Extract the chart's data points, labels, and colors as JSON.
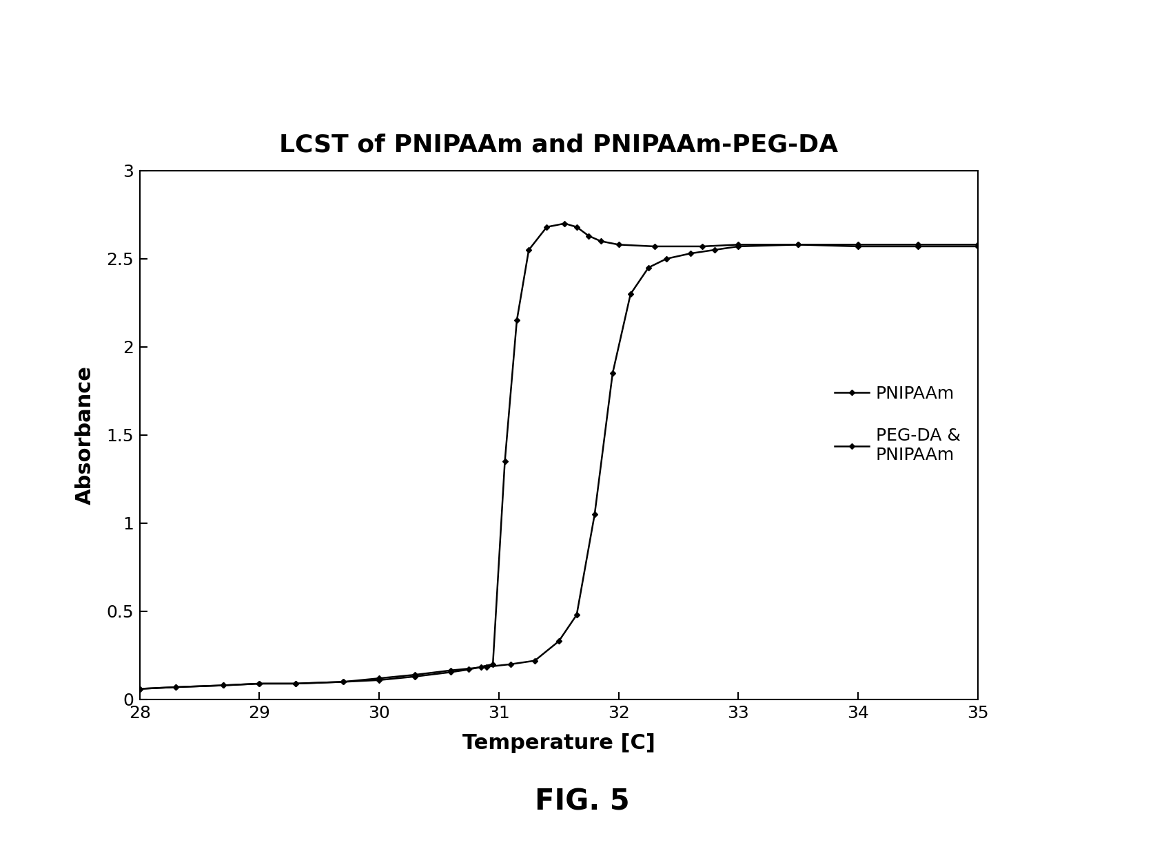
{
  "title": "LCST of PNIPAAm and PNIPAAm-PEG-DA",
  "xlabel": "Temperature [C]",
  "ylabel": "Absorbance",
  "xlim": [
    28,
    35
  ],
  "ylim": [
    0,
    3
  ],
  "xticks": [
    28,
    29,
    30,
    31,
    32,
    33,
    34,
    35
  ],
  "yticks": [
    0,
    0.5,
    1,
    1.5,
    2,
    2.5,
    3
  ],
  "fig_caption": "FIG. 5",
  "background_color": "#ffffff",
  "series1_label": "PNIPAAm",
  "series2_label": "PEG-DA &\nPNIPAAm",
  "series1_x": [
    28.0,
    28.3,
    28.7,
    29.0,
    29.3,
    29.7,
    30.0,
    30.3,
    30.6,
    30.75,
    30.85,
    30.95,
    31.05,
    31.15,
    31.25,
    31.4,
    31.55,
    31.65,
    31.75,
    31.85,
    32.0,
    32.3,
    32.7,
    33.0,
    33.5,
    34.0,
    34.5,
    35.0
  ],
  "series1_y": [
    0.06,
    0.07,
    0.08,
    0.09,
    0.09,
    0.1,
    0.11,
    0.13,
    0.155,
    0.17,
    0.185,
    0.2,
    1.35,
    2.15,
    2.55,
    2.68,
    2.7,
    2.68,
    2.63,
    2.6,
    2.58,
    2.57,
    2.57,
    2.58,
    2.58,
    2.57,
    2.57,
    2.57
  ],
  "series2_x": [
    28.0,
    28.3,
    28.7,
    29.0,
    29.3,
    29.7,
    30.0,
    30.3,
    30.6,
    30.9,
    31.1,
    31.3,
    31.5,
    31.65,
    31.8,
    31.95,
    32.1,
    32.25,
    32.4,
    32.6,
    32.8,
    33.0,
    33.5,
    34.0,
    34.5,
    35.0
  ],
  "series2_y": [
    0.06,
    0.07,
    0.08,
    0.09,
    0.09,
    0.1,
    0.12,
    0.14,
    0.165,
    0.185,
    0.2,
    0.22,
    0.33,
    0.48,
    1.05,
    1.85,
    2.3,
    2.45,
    2.5,
    2.53,
    2.55,
    2.57,
    2.58,
    2.58,
    2.58,
    2.58
  ],
  "line_color": "#000000",
  "marker": "D",
  "marker_size": 4,
  "line_width": 1.8,
  "fig_width": 16.89,
  "fig_height": 12.39,
  "dpi": 100
}
